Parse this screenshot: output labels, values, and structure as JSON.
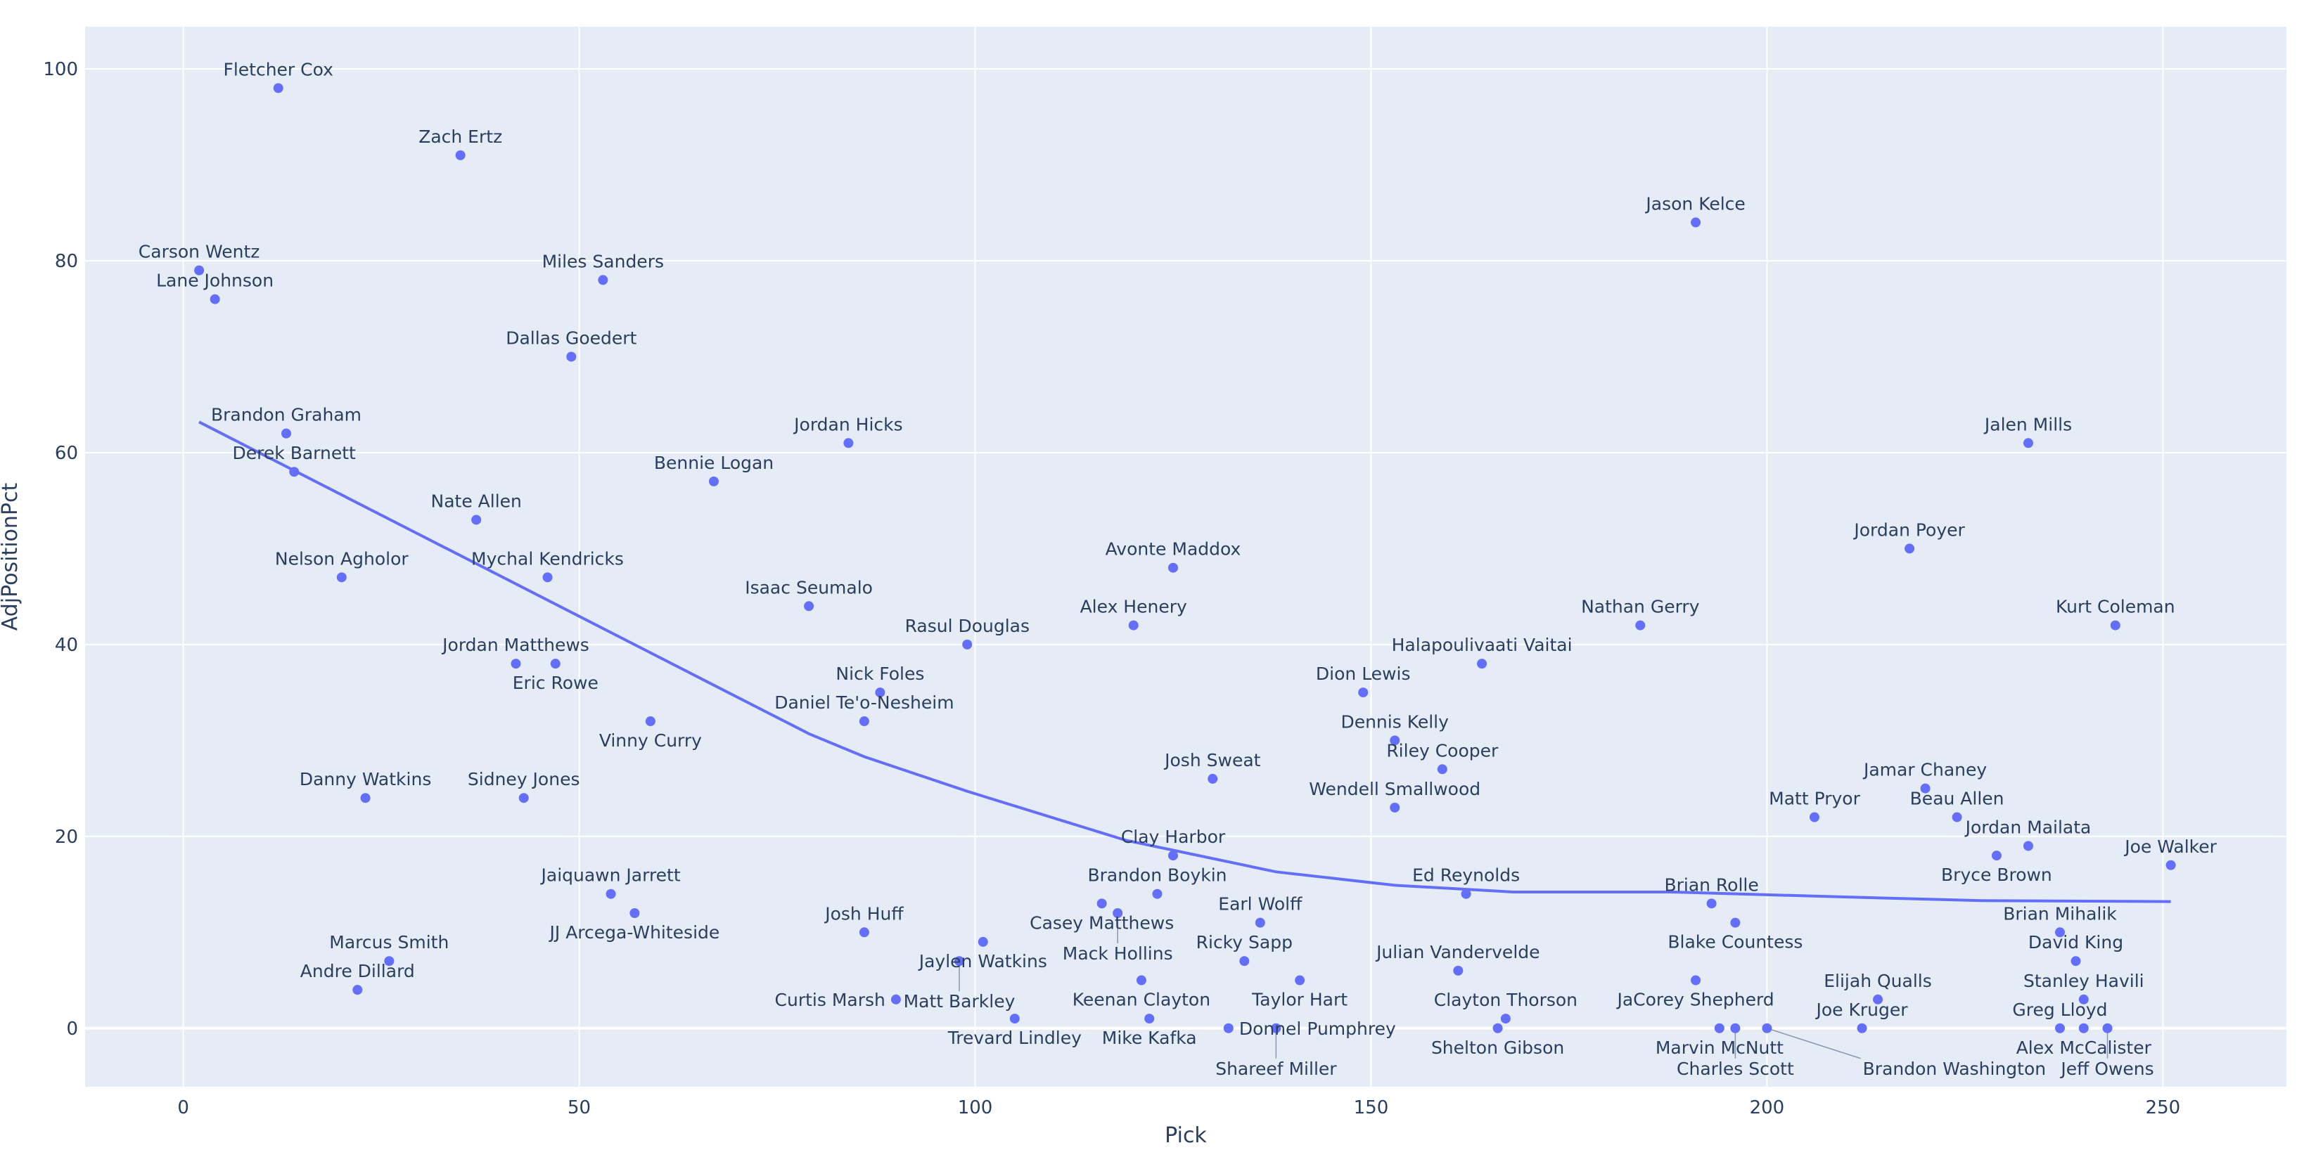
{
  "chart_data": {
    "type": "scatter",
    "title": "",
    "xlabel": "Pick",
    "ylabel": "AdjPositionPct",
    "xlim": [
      -12.4,
      265.6
    ],
    "ylim": [
      -6.1,
      104.4
    ],
    "x_ticks": [
      "0",
      "50",
      "100",
      "150",
      "200",
      "250"
    ],
    "y_ticks": [
      "0",
      "20",
      "40",
      "60",
      "80",
      "100"
    ],
    "grid": true,
    "legend": "none",
    "colors": {
      "marker": "#636EFA",
      "trendline": "#636EFA",
      "plot_bg": "#E5ECF6",
      "text": "#2a3f5f",
      "grid": "#ffffff"
    },
    "points": [
      {
        "name": "Fletcher Cox",
        "pick": 12,
        "pct": 98
      },
      {
        "name": "Zach Ertz",
        "pick": 35,
        "pct": 91
      },
      {
        "name": "Carson Wentz",
        "pick": 2,
        "pct": 79
      },
      {
        "name": "Lane Johnson",
        "pick": 4,
        "pct": 76
      },
      {
        "name": "Miles Sanders",
        "pick": 53,
        "pct": 78
      },
      {
        "name": "Dallas Goedert",
        "pick": 49,
        "pct": 70
      },
      {
        "name": "Brandon Graham",
        "pick": 13,
        "pct": 62
      },
      {
        "name": "Derek Barnett",
        "pick": 14,
        "pct": 58
      },
      {
        "name": "Jordan Hicks",
        "pick": 84,
        "pct": 61
      },
      {
        "name": "Bennie Logan",
        "pick": 67,
        "pct": 57
      },
      {
        "name": "Nate Allen",
        "pick": 37,
        "pct": 53
      },
      {
        "name": "Nelson Agholor",
        "pick": 20,
        "pct": 47
      },
      {
        "name": "Mychal Kendricks",
        "pick": 46,
        "pct": 47
      },
      {
        "name": "Isaac Seumalo",
        "pick": 79,
        "pct": 44
      },
      {
        "name": "Avonte Maddox",
        "pick": 125,
        "pct": 48
      },
      {
        "name": "Alex Henery",
        "pick": 120,
        "pct": 42
      },
      {
        "name": "Rasul Douglas",
        "pick": 99,
        "pct": 40
      },
      {
        "name": "Jordan Matthews",
        "pick": 42,
        "pct": 38
      },
      {
        "name": "Eric Rowe",
        "pick": 47,
        "pct": 38
      },
      {
        "name": "Nick Foles",
        "pick": 88,
        "pct": 35
      },
      {
        "name": "Daniel Te'o-Nesheim",
        "pick": 86,
        "pct": 32
      },
      {
        "name": "Vinny Curry",
        "pick": 59,
        "pct": 32
      },
      {
        "name": "Danny Watkins",
        "pick": 23,
        "pct": 24
      },
      {
        "name": "Sidney Jones",
        "pick": 43,
        "pct": 24
      },
      {
        "name": "Josh Sweat",
        "pick": 130,
        "pct": 26
      },
      {
        "name": "Clay Harbor",
        "pick": 125,
        "pct": 18
      },
      {
        "name": "Jaiquawn Jarrett",
        "pick": 54,
        "pct": 14
      },
      {
        "name": "JJ Arcega-Whiteside",
        "pick": 57,
        "pct": 12
      },
      {
        "name": "Brandon Boykin",
        "pick": 123,
        "pct": 14
      },
      {
        "name": "Casey Matthews",
        "pick": 116,
        "pct": 13
      },
      {
        "name": "Mack Hollins",
        "pick": 118,
        "pct": 12
      },
      {
        "name": "Earl Wolff",
        "pick": 136,
        "pct": 11
      },
      {
        "name": "Ricky Sapp",
        "pick": 134,
        "pct": 7
      },
      {
        "name": "Taylor Hart",
        "pick": 141,
        "pct": 5
      },
      {
        "name": "Keenan Clayton",
        "pick": 121,
        "pct": 5
      },
      {
        "name": "Mike Kafka",
        "pick": 122,
        "pct": 1
      },
      {
        "name": "Donnel Pumphrey",
        "pick": 132,
        "pct": 0
      },
      {
        "name": "Shareef Miller",
        "pick": 138,
        "pct": 0
      },
      {
        "name": "Josh Huff",
        "pick": 86,
        "pct": 10
      },
      {
        "name": "Jaylen Watkins",
        "pick": 101,
        "pct": 9
      },
      {
        "name": "Matt Barkley",
        "pick": 98,
        "pct": 7
      },
      {
        "name": "Curtis Marsh",
        "pick": 90,
        "pct": 3
      },
      {
        "name": "Trevard Lindley",
        "pick": 105,
        "pct": 1
      },
      {
        "name": "Marcus Smith",
        "pick": 26,
        "pct": 7
      },
      {
        "name": "Andre Dillard",
        "pick": 22,
        "pct": 4
      },
      {
        "name": "Ed Reynolds",
        "pick": 162,
        "pct": 14
      },
      {
        "name": "Julian Vandervelde",
        "pick": 161,
        "pct": 6
      },
      {
        "name": "Shelton Gibson",
        "pick": 166,
        "pct": 0
      },
      {
        "name": "Clayton Thorson",
        "pick": 167,
        "pct": 1
      },
      {
        "name": "Jason Kelce",
        "pick": 191,
        "pct": 84
      },
      {
        "name": "Jalen Mills",
        "pick": 233,
        "pct": 61
      },
      {
        "name": "Jordan Poyer",
        "pick": 218,
        "pct": 50
      },
      {
        "name": "Kurt Coleman",
        "pick": 244,
        "pct": 42
      },
      {
        "name": "Nathan Gerry",
        "pick": 184,
        "pct": 42
      },
      {
        "name": "Halapoulivaati Vaitai",
        "pick": 164,
        "pct": 38
      },
      {
        "name": "Dion Lewis",
        "pick": 149,
        "pct": 35
      },
      {
        "name": "Dennis Kelly",
        "pick": 153,
        "pct": 30
      },
      {
        "name": "Riley Cooper",
        "pick": 159,
        "pct": 27
      },
      {
        "name": "Wendell Smallwood",
        "pick": 153,
        "pct": 23
      },
      {
        "name": "Matt Pryor",
        "pick": 206,
        "pct": 22
      },
      {
        "name": "Jamar Chaney",
        "pick": 220,
        "pct": 25
      },
      {
        "name": "Beau Allen",
        "pick": 224,
        "pct": 22
      },
      {
        "name": "Jordan Mailata",
        "pick": 233,
        "pct": 19
      },
      {
        "name": "Bryce Brown",
        "pick": 229,
        "pct": 18
      },
      {
        "name": "Joe Walker",
        "pick": 251,
        "pct": 17
      },
      {
        "name": "Brian Rolle",
        "pick": 193,
        "pct": 13
      },
      {
        "name": "Blake Countess",
        "pick": 196,
        "pct": 11
      },
      {
        "name": "Brian Mihalik",
        "pick": 237,
        "pct": 10
      },
      {
        "name": "David King",
        "pick": 239,
        "pct": 7
      },
      {
        "name": "Stanley Havili",
        "pick": 240,
        "pct": 3
      },
      {
        "name": "JaCorey Shepherd",
        "pick": 191,
        "pct": 5
      },
      {
        "name": "Elijah Qualls",
        "pick": 214,
        "pct": 3
      },
      {
        "name": "Marvin McNutt",
        "pick": 194,
        "pct": 0
      },
      {
        "name": "Charles Scott",
        "pick": 196,
        "pct": 0
      },
      {
        "name": "Brandon Washington",
        "pick": 200,
        "pct": 0
      },
      {
        "name": "Joe Kruger",
        "pick": 212,
        "pct": 0
      },
      {
        "name": "Greg Lloyd",
        "pick": 237,
        "pct": 0
      },
      {
        "name": "Alex McCalister",
        "pick": 240,
        "pct": 0
      },
      {
        "name": "Jeff Owens",
        "pick": 243,
        "pct": 0
      }
    ],
    "trendline": [
      [
        2,
        63.2
      ],
      [
        79,
        30.7
      ],
      [
        86,
        28.3
      ],
      [
        99,
        24.7
      ],
      [
        119,
        19.6
      ],
      [
        138,
        16.3
      ],
      [
        153,
        14.9
      ],
      [
        168,
        14.2
      ],
      [
        188,
        14.2
      ],
      [
        209,
        13.7
      ],
      [
        227,
        13.3
      ],
      [
        251,
        13.2
      ]
    ]
  }
}
